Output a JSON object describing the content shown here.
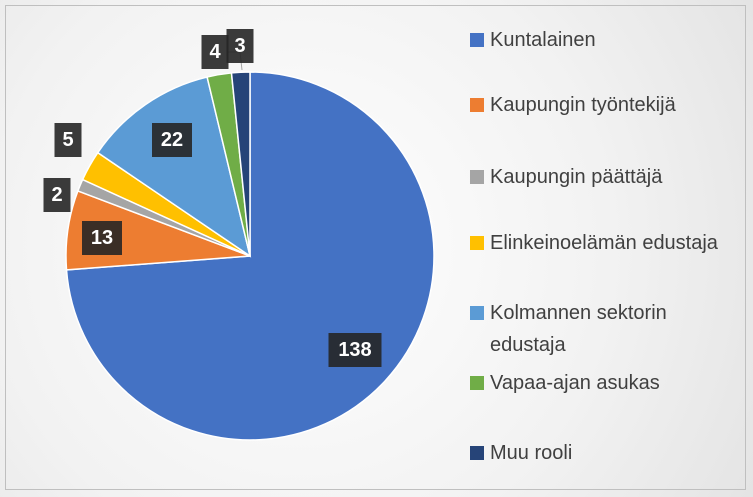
{
  "chart_data": {
    "type": "pie",
    "categories": [
      "Kuntalainen",
      "Kaupungin työntekijä",
      "Kaupungin päättäjä",
      "Elinkeinoelämän edustaja",
      "Kolmannen sektorin edustaja",
      "Vapaa-ajan asukas",
      "Muu rooli"
    ],
    "values": [
      138,
      13,
      2,
      5,
      22,
      4,
      3
    ],
    "colors": [
      "#4472c4",
      "#ed7d31",
      "#a5a5a5",
      "#ffc000",
      "#5b9bd5",
      "#70ad47",
      "#264478"
    ],
    "legend": "right"
  }
}
